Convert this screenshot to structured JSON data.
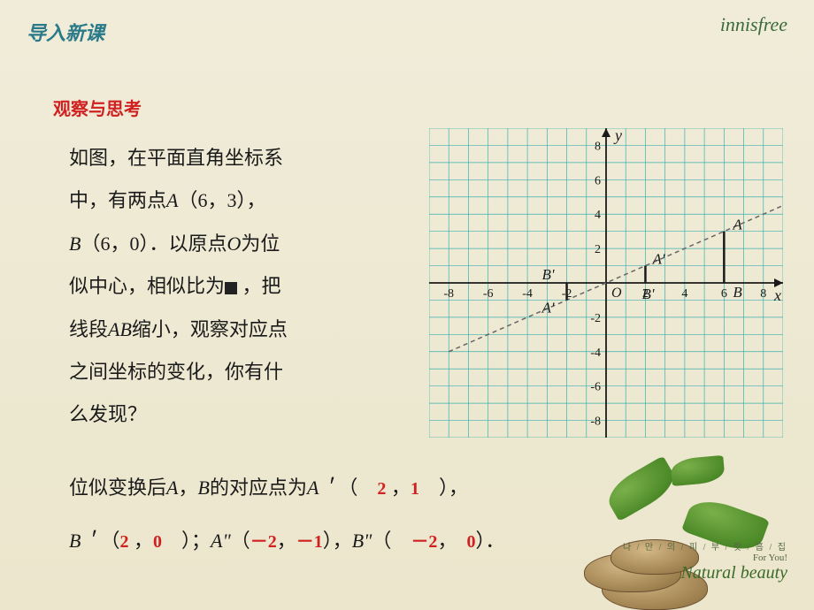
{
  "header": {
    "title": "导入新课",
    "brand": "innisfree"
  },
  "subtitle": "观察与思考",
  "body": {
    "line1": "如图，在平面直角坐标系",
    "line2_a": "中，有两点",
    "line2_b": "A",
    "line2_c": "（6，3），",
    "line3_a": "B",
    "line3_b": "（6，0）．以原点",
    "line3_c": "O",
    "line3_d": "为位",
    "line4": "似中心，相似比为",
    "line4_end": " ，把",
    "line5_a": "线段",
    "line5_b": "AB",
    "line5_c": "缩小，观察对应点",
    "line6": "之间坐标的变化，你有什",
    "line7": "么发现？"
  },
  "answers": {
    "a1_pre": "位似变换后",
    "a1_A": "A",
    "a1_comma": "，",
    "a1_B": "B",
    "a1_mid": "的对应点为",
    "a1_Ap": "A＇",
    "a1_open": "（　",
    "a1_v1": "2",
    "a1_sep": " ，",
    "a1_v2": "1",
    "a1_close": "　），",
    "a2_Bp": "B＇",
    "a2_open": "（",
    "a2_v1": "2",
    "a2_sep": " ，",
    "a2_v2": "0",
    "a2_close": "　）；",
    "a2_App": "A\"",
    "a2_open2": "（",
    "a2_v3": "－2",
    "a2_sep2": "，",
    "a2_v4": "－1",
    "a2_close2": "），",
    "a2_Bpp": "B\"",
    "a2_open3": "（　",
    "a2_v5": "－2",
    "a2_sep3": "，　",
    "a2_v6": "0",
    "a2_close3": "）．"
  },
  "graph": {
    "xmin": -9,
    "xmax": 9,
    "ymin": -9,
    "ymax": 9,
    "grid_color": "#3ab0b0",
    "axis_color": "#1a1a1a",
    "dash_color": "#666666",
    "tick_values_x": [
      -8,
      -6,
      -4,
      -2,
      2,
      4,
      6,
      8
    ],
    "tick_values_y": [
      -8,
      -6,
      -4,
      -2,
      2,
      4,
      6,
      8
    ],
    "points": {
      "A": {
        "x": 6,
        "y": 3,
        "label": "A"
      },
      "B": {
        "x": 6,
        "y": 0,
        "label": "B"
      },
      "Ap": {
        "x": 2,
        "y": 1,
        "label": "A'"
      },
      "Bp": {
        "x": 2,
        "y": 0,
        "label": "B'"
      },
      "App": {
        "x": -2,
        "y": -1,
        "label": "A'"
      },
      "Bpp": {
        "x": -2,
        "y": 0,
        "label": "B'"
      }
    },
    "axis_labels": {
      "x": "x",
      "y": "y",
      "origin": "O"
    }
  },
  "decor": {
    "korean": "나 / 만 / 의 / 피 / 부 / 랏 / 흡 / 집",
    "tag1": "For You!",
    "tag2": "Natural beauty"
  }
}
